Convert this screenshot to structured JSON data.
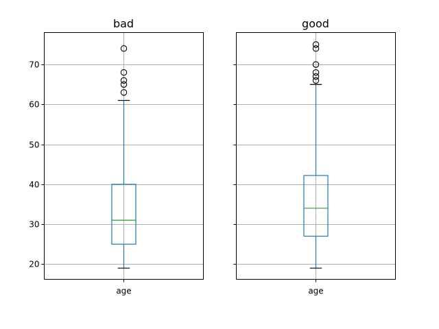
{
  "chart_data": [
    {
      "type": "box",
      "title": "bad",
      "categories": [
        "age"
      ],
      "ylim": [
        16.2,
        78.0
      ],
      "yticks": [
        20,
        30,
        40,
        50,
        60,
        70
      ],
      "grid": true,
      "show_ytick_labels": true,
      "colors": {
        "box": "#1f77b4",
        "median": "#2ca02c",
        "whisker": "#1f77b4",
        "cap": "#000000",
        "flier": "#000000"
      },
      "boxes": [
        {
          "category": "age",
          "whisker_low": 19,
          "q1": 25,
          "median": 31,
          "q3": 40,
          "whisker_high": 61,
          "fliers": [
            63,
            65,
            66,
            68,
            74
          ]
        }
      ]
    },
    {
      "type": "box",
      "title": "good",
      "categories": [
        "age"
      ],
      "ylim": [
        16.2,
        78.0
      ],
      "yticks": [
        20,
        30,
        40,
        50,
        60,
        70
      ],
      "grid": true,
      "show_ytick_labels": false,
      "colors": {
        "box": "#1f77b4",
        "median": "#2ca02c",
        "whisker": "#1f77b4",
        "cap": "#000000",
        "flier": "#000000"
      },
      "boxes": [
        {
          "category": "age",
          "whisker_low": 19,
          "q1": 27,
          "median": 34,
          "q3": 42.2,
          "whisker_high": 65,
          "fliers": [
            66,
            67,
            68,
            70,
            74,
            75
          ]
        }
      ]
    }
  ]
}
